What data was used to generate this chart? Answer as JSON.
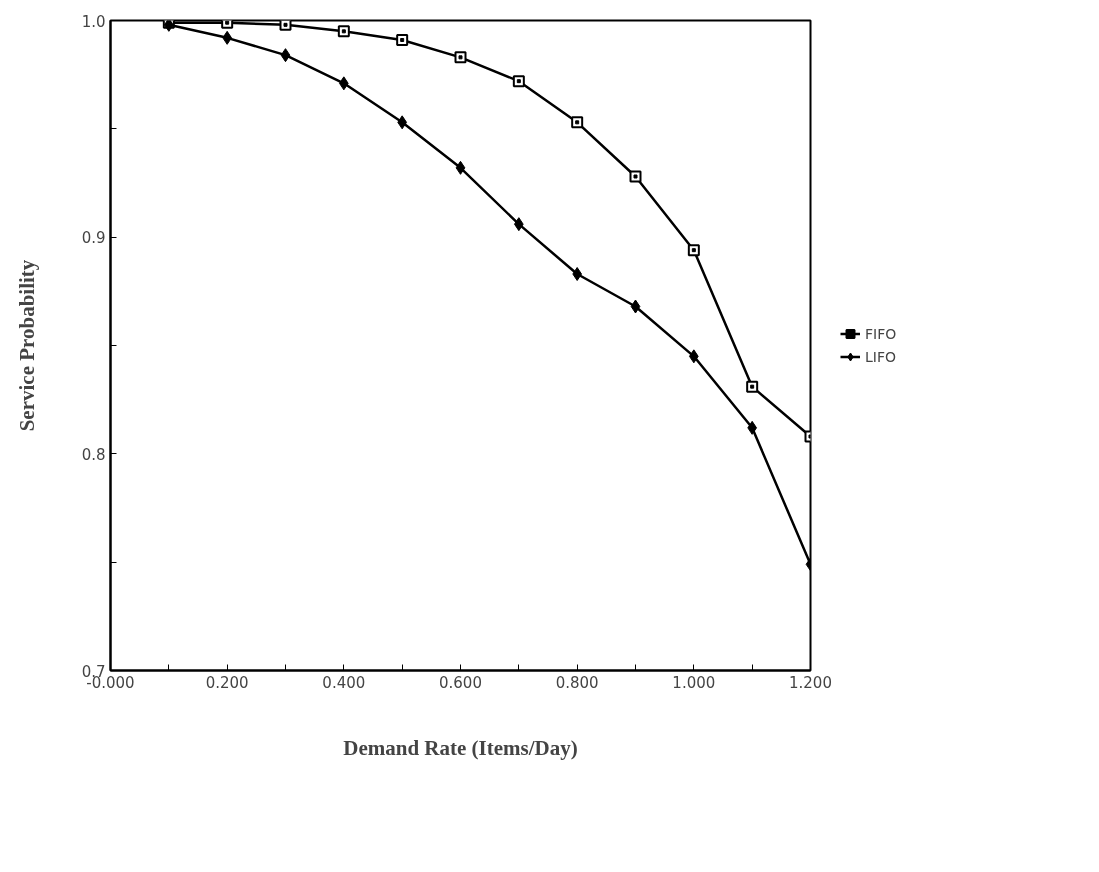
{
  "chart_data": {
    "type": "line",
    "xlabel": "Demand Rate (Items/Day)",
    "ylabel": "Service Probability",
    "x": [
      0.1,
      0.2,
      0.3,
      0.4,
      0.5,
      0.6,
      0.7,
      0.8,
      0.9,
      1.0,
      1.1,
      1.2
    ],
    "series": [
      {
        "name": "FIFO",
        "color": "#000000",
        "marker": "square",
        "values": [
          0.999,
          0.999,
          0.998,
          0.995,
          0.991,
          0.983,
          0.972,
          0.953,
          0.928,
          0.894,
          0.831,
          0.808
        ]
      },
      {
        "name": "LIFO",
        "color": "#000000",
        "marker": "diamond",
        "values": [
          0.998,
          0.992,
          0.984,
          0.971,
          0.953,
          0.932,
          0.906,
          0.883,
          0.868,
          0.845,
          0.812,
          0.749
        ]
      }
    ],
    "xlim": [
      0,
      1.2
    ],
    "xticks": [
      {
        "value": 0,
        "label": "-0.000"
      },
      {
        "value": 0.1,
        "label": null
      },
      {
        "value": 0.2,
        "label": "0.200"
      },
      {
        "value": 0.3,
        "label": null
      },
      {
        "value": 0.4,
        "label": "0.400"
      },
      {
        "value": 0.5,
        "label": null
      },
      {
        "value": 0.6,
        "label": "0.600"
      },
      {
        "value": 0.7,
        "label": null
      },
      {
        "value": 0.8,
        "label": "0.800"
      },
      {
        "value": 0.9,
        "label": null
      },
      {
        "value": 1.0,
        "label": "1.000"
      },
      {
        "value": 1.1,
        "label": null
      },
      {
        "value": 1.2,
        "label": "1.200"
      }
    ],
    "ylim": [
      0.7,
      1.0
    ],
    "yticks": [
      0.7,
      {
        "value": 0.75,
        "label": null
      },
      0.8,
      {
        "value": 0.85,
        "label": null
      },
      0.9,
      {
        "value": 0.95,
        "label": null
      },
      {
        "value": 1.0,
        "label": "1.0"
      }
    ],
    "legend": "right",
    "grid": false,
    "line_style": "solid"
  }
}
